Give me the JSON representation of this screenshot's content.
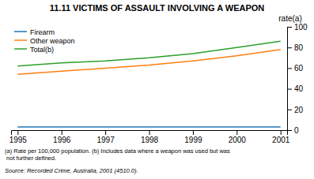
{
  "chart_data": {
    "type": "line",
    "title": "11.11   VICTIMS OF ASSAULT INVOLVING A WEAPON",
    "x": [
      1995,
      1996,
      1997,
      1998,
      1999,
      2000,
      2001
    ],
    "series": [
      {
        "name": "Firearm",
        "values": [
          3,
          3,
          3,
          3,
          3,
          3,
          3
        ]
      },
      {
        "name": "Other weapon",
        "values": [
          54,
          57,
          60,
          63,
          67,
          72,
          78
        ]
      },
      {
        "name": "Total(b)",
        "values": [
          62,
          65,
          67,
          70,
          74,
          80,
          86
        ]
      }
    ],
    "y_label": "rate(a)",
    "xlim": [
      1994.85,
      2001.15
    ],
    "xticks": [
      1995,
      1996,
      1997,
      1998,
      1999,
      2000,
      2001
    ],
    "ylim": [
      0,
      100
    ],
    "yticks": [
      0,
      20,
      40,
      60,
      80,
      100
    ],
    "grid": false,
    "legend": "upper left",
    "footnote": "(a) Rate per 100,000 population.  (b) Includes data where a weapon was used but was\n not further defined.",
    "source": "Source:  Recorded Crime, Australia,  2001 (4510.0)."
  }
}
